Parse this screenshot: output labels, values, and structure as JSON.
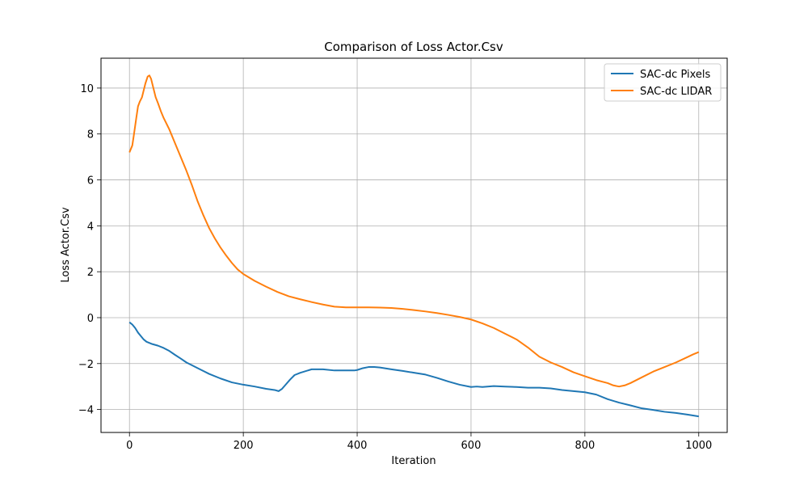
{
  "chart_data": {
    "type": "line",
    "title": "Comparison of Loss Actor.Csv",
    "xlabel": "Iteration",
    "ylabel": "Loss Actor.Csv",
    "xlim": [
      -50,
      1050
    ],
    "ylim": [
      -5.0,
      11.3
    ],
    "xticks": [
      0,
      200,
      400,
      600,
      800,
      1000
    ],
    "yticks": [
      -4,
      -2,
      0,
      2,
      4,
      6,
      8,
      10
    ],
    "grid": true,
    "legend_position": "upper-right",
    "series": [
      {
        "name": "SAC-dc Pixels",
        "color": "#1f77b4",
        "x": [
          0,
          5,
          10,
          15,
          20,
          25,
          30,
          40,
          50,
          60,
          70,
          80,
          90,
          100,
          120,
          140,
          160,
          180,
          200,
          220,
          240,
          255,
          262,
          268,
          275,
          282,
          290,
          300,
          320,
          340,
          360,
          380,
          395,
          400,
          410,
          420,
          430,
          440,
          460,
          480,
          500,
          520,
          540,
          560,
          580,
          600,
          610,
          620,
          640,
          660,
          680,
          700,
          720,
          740,
          760,
          780,
          800,
          820,
          840,
          860,
          880,
          900,
          920,
          940,
          960,
          980,
          1000
        ],
        "values": [
          -0.2,
          -0.3,
          -0.45,
          -0.65,
          -0.8,
          -0.95,
          -1.05,
          -1.15,
          -1.22,
          -1.32,
          -1.45,
          -1.62,
          -1.78,
          -1.95,
          -2.2,
          -2.45,
          -2.65,
          -2.82,
          -2.92,
          -3.0,
          -3.1,
          -3.15,
          -3.2,
          -3.1,
          -2.9,
          -2.7,
          -2.5,
          -2.4,
          -2.25,
          -2.25,
          -2.3,
          -2.3,
          -2.3,
          -2.28,
          -2.2,
          -2.15,
          -2.15,
          -2.17,
          -2.25,
          -2.32,
          -2.4,
          -2.48,
          -2.62,
          -2.78,
          -2.92,
          -3.02,
          -3.0,
          -3.02,
          -2.98,
          -3.0,
          -3.02,
          -3.05,
          -3.05,
          -3.08,
          -3.15,
          -3.2,
          -3.25,
          -3.35,
          -3.55,
          -3.7,
          -3.82,
          -3.95,
          -4.02,
          -4.1,
          -4.15,
          -4.22,
          -4.3
        ]
      },
      {
        "name": "SAC-dc LIDAR",
        "color": "#ff7f0e",
        "x": [
          0,
          5,
          8,
          12,
          15,
          18,
          22,
          25,
          28,
          32,
          35,
          38,
          40,
          43,
          46,
          50,
          55,
          60,
          70,
          80,
          90,
          100,
          110,
          120,
          130,
          140,
          150,
          160,
          170,
          180,
          190,
          200,
          220,
          240,
          260,
          280,
          300,
          320,
          340,
          360,
          380,
          400,
          420,
          440,
          460,
          480,
          500,
          520,
          540,
          560,
          580,
          600,
          620,
          640,
          660,
          680,
          700,
          720,
          740,
          760,
          780,
          800,
          820,
          840,
          850,
          860,
          870,
          880,
          900,
          920,
          940,
          960,
          980,
          990,
          1000
        ],
        "values": [
          7.2,
          7.5,
          8.0,
          8.7,
          9.2,
          9.4,
          9.6,
          9.9,
          10.2,
          10.5,
          10.55,
          10.4,
          10.2,
          9.9,
          9.6,
          9.35,
          9.0,
          8.7,
          8.2,
          7.6,
          7.0,
          6.4,
          5.75,
          5.05,
          4.45,
          3.9,
          3.45,
          3.05,
          2.7,
          2.38,
          2.1,
          1.9,
          1.6,
          1.35,
          1.12,
          0.93,
          0.8,
          0.68,
          0.57,
          0.48,
          0.45,
          0.45,
          0.45,
          0.44,
          0.42,
          0.38,
          0.33,
          0.27,
          0.2,
          0.12,
          0.03,
          -0.08,
          -0.25,
          -0.45,
          -0.7,
          -0.95,
          -1.3,
          -1.7,
          -1.95,
          -2.15,
          -2.38,
          -2.55,
          -2.72,
          -2.85,
          -2.95,
          -3.0,
          -2.95,
          -2.85,
          -2.6,
          -2.35,
          -2.15,
          -1.95,
          -1.72,
          -1.6,
          -1.5
        ]
      }
    ]
  }
}
